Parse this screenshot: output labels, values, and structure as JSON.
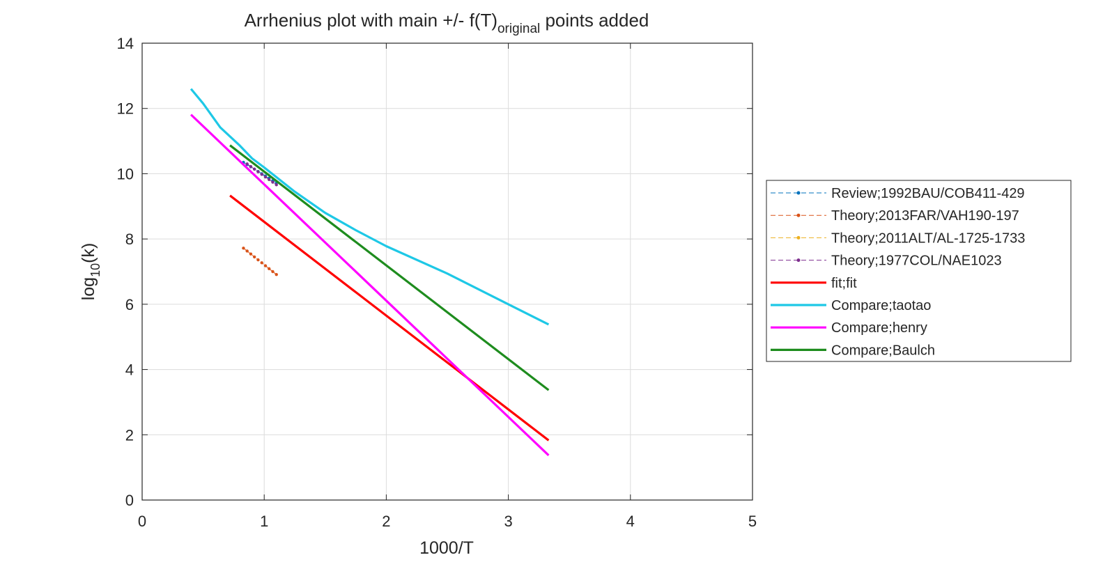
{
  "chart_data": {
    "type": "line",
    "title_main": "Arrhenius plot with main +/- f(T)",
    "title_sub": "original",
    "title_tail": " points added",
    "xlabel": "1000/T",
    "ylabel_main": "log",
    "ylabel_sub": "10",
    "ylabel_tail": "(k)",
    "xlim": [
      0,
      5
    ],
    "ylim": [
      0,
      14
    ],
    "xticks": [
      "0",
      "1",
      "2",
      "3",
      "4",
      "5"
    ],
    "yticks": [
      "0",
      "2",
      "4",
      "6",
      "8",
      "10",
      "12",
      "14"
    ],
    "grid": true,
    "legend_position": "outside-right",
    "series": [
      {
        "name": "Review;1992BAU/COB411-429",
        "color": "#0072bd",
        "style": "dashed-marker",
        "x": [
          0.83,
          0.86,
          0.89,
          0.92,
          0.95,
          0.98,
          1.01,
          1.04,
          1.07,
          1.1
        ],
        "y": [
          10.35,
          10.28,
          10.21,
          10.14,
          10.07,
          10.0,
          9.93,
          9.86,
          9.79,
          9.72
        ]
      },
      {
        "name": "Theory;2013FAR/VAH190-197",
        "color": "#d95319",
        "style": "dashed-marker",
        "x": [
          0.83,
          0.86,
          0.89,
          0.92,
          0.95,
          0.98,
          1.01,
          1.04,
          1.07,
          1.1
        ],
        "y": [
          7.72,
          7.63,
          7.54,
          7.45,
          7.36,
          7.27,
          7.18,
          7.09,
          7.0,
          6.91
        ]
      },
      {
        "name": "Theory;2011ALT/AL-1725-1733",
        "color": "#edb120",
        "style": "dashed-marker",
        "x": [],
        "y": []
      },
      {
        "name": "Theory;1977COL/NAE1023",
        "color": "#7e2f8e",
        "style": "dashed-marker",
        "x": [
          0.86,
          0.89,
          0.92,
          0.95,
          0.98,
          1.01,
          1.04,
          1.07,
          1.1
        ],
        "y": [
          10.3,
          10.22,
          10.14,
          10.06,
          9.98,
          9.9,
          9.82,
          9.74,
          9.66
        ]
      },
      {
        "name": "fit;fit",
        "color": "#ff0000",
        "style": "solid",
        "x": [
          0.72,
          3.33
        ],
        "y": [
          9.33,
          1.83
        ]
      },
      {
        "name": "Compare;taotao",
        "color": "#1ec8e6",
        "style": "solid",
        "x": [
          0.4,
          0.5,
          0.64,
          0.8,
          0.9,
          1.0,
          1.25,
          1.5,
          1.75,
          2.0,
          2.5,
          3.0,
          3.33
        ],
        "y": [
          12.6,
          12.15,
          11.42,
          10.86,
          10.47,
          10.19,
          9.45,
          8.8,
          8.27,
          7.78,
          6.94,
          6.0,
          5.38
        ]
      },
      {
        "name": "Compare;henry",
        "color": "#ff00ff",
        "style": "solid",
        "x": [
          0.4,
          3.33
        ],
        "y": [
          11.81,
          1.37
        ]
      },
      {
        "name": "Compare;Baulch",
        "color": "#1e8c1e",
        "style": "solid",
        "x": [
          0.72,
          3.33
        ],
        "y": [
          10.87,
          3.37
        ]
      }
    ]
  }
}
